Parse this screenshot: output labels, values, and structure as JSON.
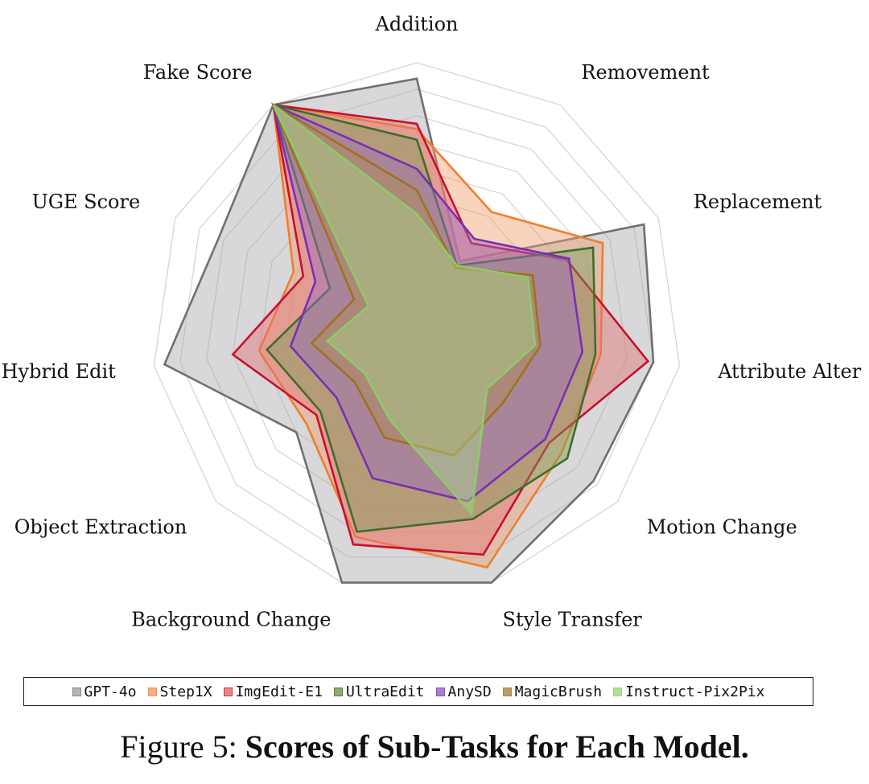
{
  "chart_data": {
    "type": "radar",
    "axes": [
      "Addition",
      "Removement",
      "Replacement",
      "Attribute Alter",
      "Motion Change",
      "Style Transfer",
      "Background Change",
      "Object Extraction",
      "Hybrid Edit",
      "UGE Score",
      "Fake Score"
    ],
    "rmax": 1.0,
    "grid": true,
    "legend_position": "bottom",
    "series": [
      {
        "name": "GPT-4o",
        "stroke": "#707070",
        "fill": "#a8a6ab",
        "values": [
          0.94,
          0.3,
          0.94,
          0.9,
          0.88,
          1.0,
          1.0,
          0.6,
          0.96,
          0.82,
          1.0
        ]
      },
      {
        "name": "Step1X",
        "stroke": "#ef7f2d",
        "fill": "#f0a070",
        "values": [
          0.75,
          0.52,
          0.77,
          0.7,
          0.72,
          0.94,
          0.82,
          0.55,
          0.6,
          0.51,
          1.0
        ]
      },
      {
        "name": "ImgEdit-E1",
        "stroke": "#c8102e",
        "fill": "#e57373",
        "values": [
          0.77,
          0.38,
          0.62,
          0.88,
          0.66,
          0.89,
          0.85,
          0.5,
          0.7,
          0.47,
          1.0
        ]
      },
      {
        "name": "UltraEdit",
        "stroke": "#3f6e2a",
        "fill": "#7a9d5a",
        "values": [
          0.71,
          0.28,
          0.73,
          0.68,
          0.75,
          0.75,
          0.8,
          0.48,
          0.57,
          0.36,
          1.0
        ]
      },
      {
        "name": "AnySD",
        "stroke": "#7a2fb5",
        "fill": "#9c6bc4",
        "values": [
          0.6,
          0.4,
          0.63,
          0.63,
          0.64,
          0.68,
          0.59,
          0.4,
          0.48,
          0.42,
          1.0
        ]
      },
      {
        "name": "MagicBrush",
        "stroke": "#a0711f",
        "fill": "#b08b4f",
        "values": [
          0.52,
          0.27,
          0.48,
          0.47,
          0.43,
          0.5,
          0.43,
          0.31,
          0.4,
          0.26,
          1.0
        ]
      },
      {
        "name": "Instruct-Pix2Pix",
        "stroke": "#8ccc66",
        "fill": "#a9d98a",
        "values": [
          0.43,
          0.28,
          0.46,
          0.45,
          0.35,
          0.73,
          0.36,
          0.26,
          0.34,
          0.2,
          1.0
        ]
      }
    ]
  },
  "caption": {
    "prefix": "Figure 5: ",
    "title": "Scores of Sub-Tasks for Each Model."
  }
}
